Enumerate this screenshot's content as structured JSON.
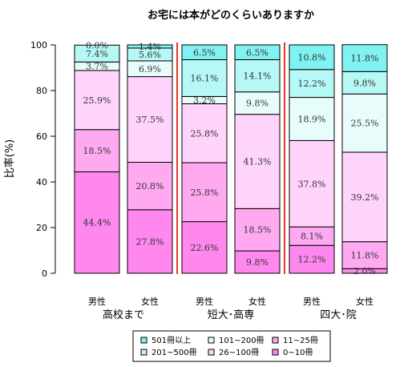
{
  "chart_data": {
    "type": "bar",
    "stacked": true,
    "title": "お宅には本がどのくらいありますか",
    "ylabel": "比率(%)",
    "ylim": [
      0,
      100
    ],
    "yticks": [
      "0",
      "20",
      "40",
      "60",
      "80",
      "100"
    ],
    "categories": [
      "男性",
      "女性",
      "男性",
      "女性",
      "男性",
      "女性"
    ],
    "groups": [
      {
        "label": "高校まで",
        "bars": [
          0,
          1
        ]
      },
      {
        "label": "短大･高専",
        "bars": [
          2,
          3
        ]
      },
      {
        "label": "四大･院",
        "bars": [
          4,
          5
        ]
      }
    ],
    "series": [
      {
        "name": "0~10冊",
        "color": "#ff88ee",
        "values": [
          44.4,
          27.8,
          22.6,
          9.8,
          12.2,
          2.0
        ],
        "labels": [
          "44.4%",
          "27.8%",
          "22.6%",
          "9.8%",
          "12.2%",
          "2.0%"
        ]
      },
      {
        "name": "11~25冊",
        "color": "#ffaaf0",
        "values": [
          18.5,
          20.8,
          25.8,
          18.5,
          8.1,
          11.8
        ],
        "labels": [
          "18.5%",
          "20.8%",
          "25.8%",
          "18.5%",
          "8.1%",
          "11.8%"
        ]
      },
      {
        "name": "26~100冊",
        "color": "#ffd4fa",
        "values": [
          25.9,
          37.5,
          25.8,
          41.3,
          37.8,
          39.2
        ],
        "labels": [
          "25.9%",
          "37.5%",
          "25.8%",
          "41.3%",
          "37.8%",
          "39.2%"
        ]
      },
      {
        "name": "101~200冊",
        "color": "#e8fdfb",
        "values": [
          3.7,
          6.9,
          3.2,
          9.8,
          18.9,
          25.5
        ],
        "labels": [
          "3.7%",
          "6.9%",
          "3.2%",
          "9.8%",
          "18.9%",
          "25.5%"
        ]
      },
      {
        "name": "201~500冊",
        "color": "#b6f8f6",
        "values": [
          7.4,
          5.6,
          16.1,
          14.1,
          12.2,
          9.8
        ],
        "labels": [
          "7.4%",
          "5.6%",
          "16.1%",
          "14.1%",
          "12.2%",
          "9.8%"
        ]
      },
      {
        "name": "501冊以上",
        "color": "#80f2f2",
        "values": [
          0.0,
          1.4,
          6.5,
          6.5,
          10.8,
          11.8
        ],
        "labels": [
          "0.0%",
          "1.4%",
          "6.5%",
          "6.5%",
          "10.8%",
          "11.8%"
        ]
      }
    ],
    "legend": {
      "placement": "bottom",
      "rows": [
        [
          {
            "name": "501冊以上",
            "color": "#80f2f2"
          },
          {
            "name": "101~200冊",
            "color": "#e8fdfb"
          },
          {
            "name": "11~25冊",
            "color": "#ffaaf0"
          }
        ],
        [
          {
            "name": "201~500冊",
            "color": "#b6f8f6"
          },
          {
            "name": "26~100冊",
            "color": "#ffd4fa"
          },
          {
            "name": "0~10冊",
            "color": "#ff88ee"
          }
        ]
      ]
    },
    "separator_color": "#e8382a",
    "grid": false
  }
}
